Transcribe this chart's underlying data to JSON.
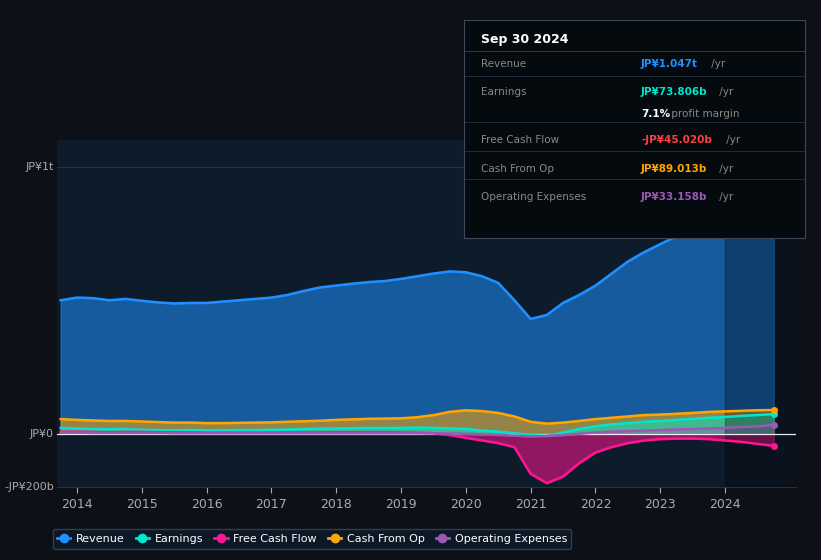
{
  "background_color": "#0d1117",
  "plot_bg_color": "#0d1b2a",
  "x_years": [
    2013.75,
    2014.0,
    2014.25,
    2014.5,
    2014.75,
    2015.0,
    2015.25,
    2015.5,
    2015.75,
    2016.0,
    2016.25,
    2016.5,
    2016.75,
    2017.0,
    2017.25,
    2017.5,
    2017.75,
    2018.0,
    2018.25,
    2018.5,
    2018.75,
    2019.0,
    2019.25,
    2019.5,
    2019.75,
    2020.0,
    2020.25,
    2020.5,
    2020.75,
    2021.0,
    2021.25,
    2021.5,
    2021.75,
    2022.0,
    2022.25,
    2022.5,
    2022.75,
    2023.0,
    2023.25,
    2023.5,
    2023.75,
    2024.0,
    2024.25,
    2024.5,
    2024.75
  ],
  "revenue": [
    500,
    510,
    508,
    500,
    505,
    498,
    492,
    488,
    490,
    490,
    495,
    500,
    505,
    510,
    520,
    535,
    548,
    555,
    562,
    568,
    572,
    580,
    590,
    600,
    608,
    605,
    590,
    565,
    500,
    430,
    445,
    490,
    520,
    555,
    600,
    645,
    680,
    710,
    740,
    775,
    820,
    870,
    930,
    990,
    1047
  ],
  "earnings": [
    22,
    20,
    18,
    17,
    18,
    15,
    14,
    13,
    14,
    13,
    13,
    14,
    14,
    15,
    16,
    18,
    19,
    20,
    21,
    22,
    22,
    22,
    23,
    22,
    20,
    18,
    12,
    8,
    2,
    -5,
    -8,
    5,
    18,
    28,
    35,
    40,
    45,
    48,
    52,
    56,
    60,
    63,
    67,
    70,
    73.806
  ],
  "free_cash_flow": [
    8,
    8,
    7,
    6,
    7,
    7,
    6,
    5,
    5,
    4,
    4,
    4,
    4,
    4,
    5,
    5,
    5,
    6,
    6,
    6,
    6,
    5,
    4,
    2,
    -5,
    -15,
    -25,
    -35,
    -50,
    -150,
    -185,
    -160,
    -110,
    -70,
    -50,
    -35,
    -25,
    -20,
    -18,
    -18,
    -20,
    -25,
    -30,
    -38,
    -45.02
  ],
  "cash_from_op": [
    55,
    52,
    50,
    48,
    48,
    46,
    44,
    42,
    42,
    40,
    40,
    41,
    42,
    43,
    45,
    47,
    49,
    52,
    54,
    56,
    57,
    58,
    62,
    70,
    82,
    88,
    85,
    78,
    65,
    45,
    38,
    42,
    48,
    55,
    60,
    65,
    70,
    72,
    75,
    78,
    82,
    84,
    86,
    88,
    89.013
  ],
  "operating_expenses": [
    4,
    4,
    3,
    3,
    3,
    3,
    3,
    2,
    2,
    2,
    2,
    2,
    2,
    2,
    2,
    2,
    2,
    2,
    2,
    2,
    2,
    2,
    2,
    2,
    1,
    0,
    -2,
    -4,
    -7,
    -10,
    -8,
    -5,
    0,
    5,
    8,
    10,
    12,
    14,
    16,
    18,
    20,
    22,
    25,
    28,
    33.158
  ],
  "revenue_color": "#1e90ff",
  "earnings_color": "#00e5cc",
  "free_cash_flow_color": "#ff1493",
  "cash_from_op_color": "#ffa500",
  "operating_expenses_color": "#9b59b6",
  "ylim_min": -200,
  "ylim_max": 1100,
  "ytick_labels": [
    "JP¥1t",
    "JP¥0",
    "-JP¥200b"
  ],
  "ytick_values": [
    1000,
    0,
    -200
  ],
  "xtick_labels": [
    "2014",
    "2015",
    "2016",
    "2017",
    "2018",
    "2019",
    "2020",
    "2021",
    "2022",
    "2023",
    "2024"
  ],
  "xtick_values": [
    2014,
    2015,
    2016,
    2017,
    2018,
    2019,
    2020,
    2021,
    2022,
    2023,
    2024
  ],
  "info_box_title": "Sep 30 2024",
  "info_rows": [
    {
      "label": "Revenue",
      "value": "JP¥1.047t /yr",
      "value_color": "#1e90ff"
    },
    {
      "label": "Earnings",
      "value": "JP¥73.806b /yr",
      "value_color": "#00e5cc"
    },
    {
      "label": "",
      "value": "7.1% profit margin",
      "value_color": "#ffffff",
      "bold_part": "7.1%"
    },
    {
      "label": "Free Cash Flow",
      "value": "-JP¥45.020b /yr",
      "value_color": "#ff4040"
    },
    {
      "label": "Cash From Op",
      "value": "JP¥89.013b /yr",
      "value_color": "#ffa500"
    },
    {
      "label": "Operating Expenses",
      "value": "JP¥33.158b /yr",
      "value_color": "#9b59b6"
    }
  ],
  "legend": [
    {
      "label": "Revenue",
      "color": "#1e90ff"
    },
    {
      "label": "Earnings",
      "color": "#00e5cc"
    },
    {
      "label": "Free Cash Flow",
      "color": "#ff1493"
    },
    {
      "label": "Cash From Op",
      "color": "#ffa500"
    },
    {
      "label": "Operating Expenses",
      "color": "#9b59b6"
    }
  ]
}
